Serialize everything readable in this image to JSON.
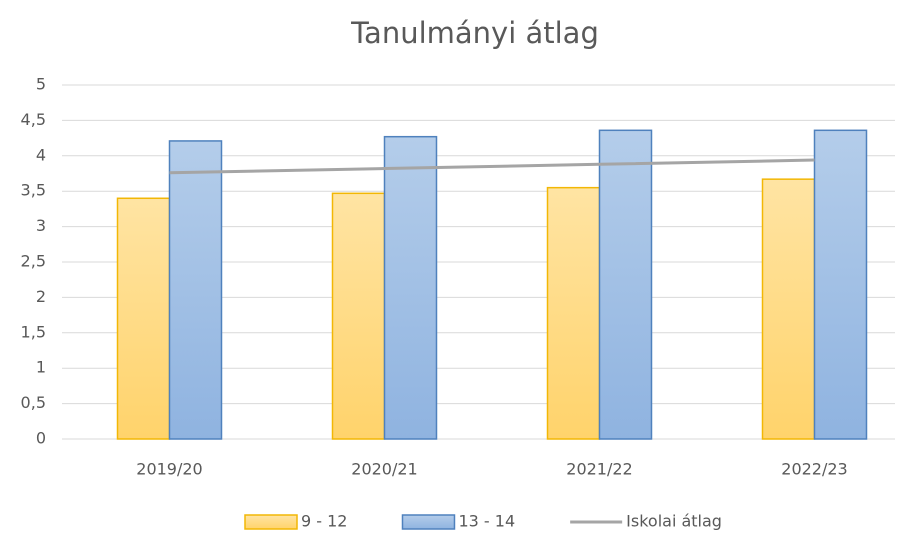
{
  "chart_data": {
    "type": "bar_line",
    "title": "Tanulmányi átlag",
    "categories": [
      "2019/20",
      "2020/21",
      "2021/22",
      "2022/23"
    ],
    "series": [
      {
        "name": "9 - 12",
        "color": "#ffd966",
        "border": "#f2b705",
        "type": "bar",
        "values": [
          3.4,
          3.47,
          3.55,
          3.67
        ]
      },
      {
        "name": "13 - 14",
        "color": "#9dc3e6",
        "border": "#4f81bd",
        "type": "bar",
        "values": [
          4.21,
          4.27,
          4.36,
          4.36
        ]
      },
      {
        "name": "Iskolai átlag",
        "color": "#a5a5a5",
        "type": "line",
        "values": [
          3.76,
          3.82,
          3.88,
          3.94
        ]
      }
    ],
    "ylim": [
      0,
      5
    ],
    "yticks": [
      0,
      {
        "value": 0.5,
        "label": "0,5"
      },
      1,
      {
        "value": 1.5,
        "label": "1,5"
      },
      2,
      {
        "value": 2.5,
        "label": "2,5"
      },
      3,
      {
        "value": 3.5,
        "label": "3,5"
      },
      4,
      {
        "value": 4.5,
        "label": "4,5"
      },
      5
    ],
    "grid": true,
    "legend": "bottom"
  }
}
